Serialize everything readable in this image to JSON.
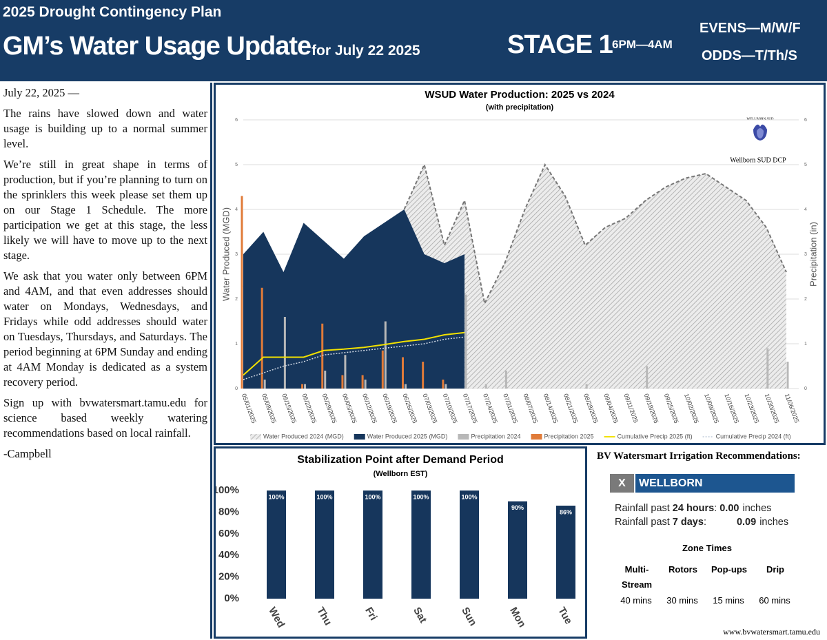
{
  "header": {
    "kicker": "2025 Drought Contingency Plan",
    "title": "GM’s Water Usage Update",
    "subtitle": "for July 22 2025",
    "stage": "STAGE 1",
    "hours": "6PM—4AM",
    "evens": "EVENS—M/W/F",
    "odds": "ODDS—T/Th/S"
  },
  "article": {
    "date": "July 22, 2025 —",
    "paragraphs": [
      "The rains have slowed down and water usage is building up to a normal summer level.",
      "We’re still in great shape in terms of production, but if you’re planning to turn on the sprinklers this week please set them up on our Stage 1 Schedule.  The more participation we get at this stage, the less likely we will have to move up to the next stage.",
      "We ask that you water only between 6PM and 4AM, and that even addresses should water on Mondays, Wednesdays, and Fridays while odd addresses should water on Tuesdays, Thursdays, and Saturdays.  The period beginning at 6PM Sunday and ending at 4AM Monday is dedicated as a system recovery period.",
      "Sign up with bvwatersmart.tamu.edu for science based weekly watering recommendations based on local rainfall."
    ],
    "signature": "-Campbell"
  },
  "chart_data": [
    {
      "type": "line",
      "title": "WSUD Water Production: 2025 vs 2024",
      "subtitle": "(with precipitation)",
      "y_label": "Water Produced (MGD)",
      "y2_label": "Precipitation (in)",
      "logo_text": "WELLBORN SUD",
      "annotation": "Wellborn SUD DCP",
      "grid": true,
      "legend": "bottom",
      "ylim": [
        0,
        6
      ],
      "yticks": [
        0,
        1,
        2,
        3,
        4,
        5,
        6
      ],
      "y2lim": [
        0,
        6
      ],
      "y2ticks": [
        0,
        1,
        2,
        3,
        4,
        5,
        6
      ],
      "categories": [
        "05/01/2025",
        "05/08/2025",
        "05/15/2025",
        "05/22/2025",
        "05/29/2025",
        "06/05/2025",
        "06/12/2025",
        "06/19/2025",
        "06/26/2025",
        "07/03/2025",
        "07/10/2025",
        "07/17/2025",
        "07/24/2025",
        "07/31/2025",
        "08/07/2025",
        "08/14/2025",
        "08/21/2025",
        "08/28/2025",
        "09/04/2025",
        "09/11/2025",
        "09/18/2025",
        "09/25/2025",
        "10/02/2025",
        "10/09/2025",
        "10/16/2025",
        "10/23/2025",
        "10/30/2025",
        "11/06/2025"
      ],
      "series": [
        {
          "name": "Water Produced 2024 (MGD)",
          "kind": "area-hatched",
          "color": "#8a8a8a",
          "values": [
            2.3,
            2.2,
            2.0,
            2.4,
            2.6,
            2.7,
            2.9,
            3.0,
            4.0,
            5.0,
            3.2,
            4.2,
            1.9,
            2.8,
            4.0,
            5.0,
            4.3,
            3.2,
            3.6,
            3.8,
            4.2,
            4.5,
            4.7,
            4.8,
            4.5,
            4.2,
            3.6,
            2.6
          ]
        },
        {
          "name": "Water Produced 2025 (MGD)",
          "kind": "area",
          "color": "#16365c",
          "values": [
            3.0,
            3.5,
            2.6,
            3.7,
            3.3,
            2.9,
            3.4,
            3.7,
            4.0,
            3.0,
            2.8,
            3.0,
            null,
            null,
            null,
            null,
            null,
            null,
            null,
            null,
            null,
            null,
            null,
            null,
            null,
            null,
            null,
            null
          ]
        },
        {
          "name": "Precipitation 2024",
          "kind": "bar",
          "axis": "y2",
          "color": "#b8b8b8",
          "values": [
            0,
            0.2,
            1.6,
            0.1,
            0.4,
            0.75,
            0.2,
            1.5,
            0.1,
            0,
            0.1,
            2.1,
            0.1,
            0.4,
            0,
            0,
            0,
            0.1,
            0,
            0,
            0.5,
            0,
            0,
            0,
            0,
            0,
            0.9,
            0.6
          ]
        },
        {
          "name": "Precipitation 2025",
          "kind": "bar",
          "axis": "y2",
          "color": "#e07b39",
          "values": [
            4.3,
            2.25,
            0,
            0.1,
            1.45,
            0.3,
            0.3,
            0.85,
            0.7,
            0.6,
            0.2,
            0,
            null,
            null,
            null,
            null,
            null,
            null,
            null,
            null,
            null,
            null,
            null,
            null,
            null,
            null,
            null,
            null
          ]
        },
        {
          "name": "Cumulative Precip 2025 (ft)",
          "kind": "line",
          "axis": "y2",
          "color": "#f2e100",
          "values": [
            0.3,
            0.7,
            0.7,
            0.7,
            0.85,
            0.88,
            0.92,
            0.98,
            1.05,
            1.1,
            1.2,
            1.25,
            null,
            null,
            null,
            null,
            null,
            null,
            null,
            null,
            null,
            null,
            null,
            null,
            null,
            null,
            null,
            null
          ]
        },
        {
          "name": "Cumulative Precip 2024 (ft)",
          "kind": "line-dotted",
          "axis": "y2",
          "color": "#d0d8e4",
          "values": [
            0.2,
            0.35,
            0.5,
            0.6,
            0.75,
            0.8,
            0.85,
            0.9,
            0.95,
            1.0,
            1.1,
            1.15,
            null,
            null,
            null,
            null,
            null,
            null,
            null,
            null,
            null,
            null,
            null,
            null,
            null,
            null,
            null,
            null
          ]
        }
      ]
    },
    {
      "type": "bar",
      "title": "Stabilization Point after Demand Period",
      "subtitle": "(Wellborn EST)",
      "color": "#16365c",
      "categories": [
        "Wed",
        "Thu",
        "Fri",
        "Sat",
        "Sun",
        "Mon",
        "Tue"
      ],
      "values": [
        100,
        100,
        100,
        100,
        100,
        90,
        86
      ],
      "value_labels": [
        "100%",
        "100%",
        "100%",
        "100%",
        "100%",
        "90%",
        "86%"
      ],
      "ylim": [
        0,
        100
      ],
      "yticks": [
        {
          "value": 0,
          "label": "0%"
        },
        {
          "value": 20,
          "label": "20%"
        },
        {
          "value": 40,
          "label": "40%"
        },
        {
          "value": 60,
          "label": "60%"
        },
        {
          "value": 80,
          "label": "80%"
        },
        {
          "value": 100,
          "label": "100%"
        }
      ]
    }
  ],
  "watersmart": {
    "title": "BV Watersmart Irrigation Recommendations:",
    "close": "X",
    "place": "WELLBORN",
    "rain": [
      {
        "pre": "Rainfall past",
        "bold": "24 hours",
        "sep": ":",
        "value": "0.00",
        "unit": "inches"
      },
      {
        "pre": "Rainfall past",
        "bold": "7 days",
        "sep": ":",
        "value": "0.09",
        "unit": "inches"
      }
    ],
    "zone_title": "Zone Times",
    "zones": [
      "Multi-Stream",
      "Rotors",
      "Pop-ups",
      "Drip"
    ],
    "times": [
      "40 mins",
      "30 mins",
      "15 mins",
      "60 mins"
    ],
    "url": "www.bvwatersmart.tamu.edu"
  }
}
